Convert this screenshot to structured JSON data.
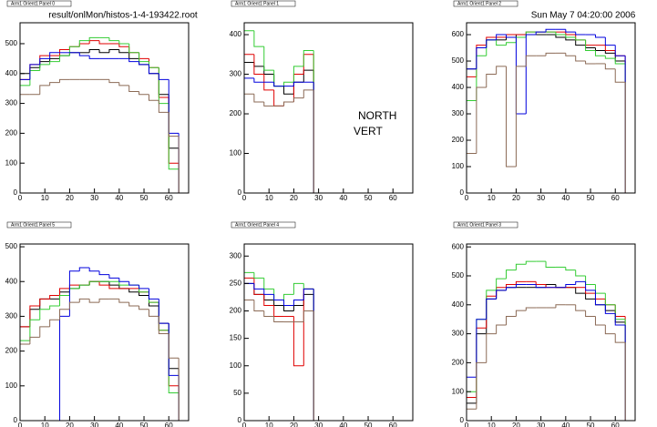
{
  "header": {
    "file": "result/onlMon/histos-1-4-193422.root",
    "date": "Sun May  7 04:20:00 2006"
  },
  "chart_data": [
    {
      "type": "histogram",
      "title": "Arm1 Orient1 Panel 0",
      "bins": [
        0,
        4,
        8,
        12,
        16,
        20,
        24,
        28,
        32,
        36,
        40,
        44,
        48,
        52,
        56,
        60,
        64,
        68
      ],
      "xlim": [
        0,
        68
      ],
      "xticks": [
        0,
        10,
        20,
        30,
        40,
        50,
        60
      ],
      "ylim": [
        0,
        570
      ],
      "yticks": [
        0,
        100,
        200,
        300,
        400,
        500
      ],
      "series": [
        {
          "color": "#000000",
          "values": [
            400,
            420,
            440,
            450,
            460,
            470,
            470,
            480,
            470,
            480,
            470,
            450,
            430,
            400,
            330,
            150,
            0
          ]
        },
        {
          "color": "#e00000",
          "values": [
            380,
            430,
            460,
            460,
            480,
            490,
            500,
            510,
            500,
            500,
            490,
            470,
            450,
            420,
            320,
            100,
            0
          ]
        },
        {
          "color": "#33cc33",
          "values": [
            360,
            410,
            430,
            440,
            460,
            490,
            510,
            520,
            520,
            510,
            500,
            470,
            440,
            420,
            300,
            80,
            0
          ]
        },
        {
          "color": "#0000dd",
          "values": [
            380,
            430,
            450,
            470,
            470,
            470,
            460,
            450,
            450,
            450,
            450,
            440,
            430,
            400,
            380,
            200,
            0
          ]
        },
        {
          "color": "#8b6a55",
          "values": [
            330,
            330,
            360,
            370,
            380,
            380,
            380,
            380,
            380,
            370,
            360,
            340,
            330,
            310,
            270,
            190,
            0
          ]
        }
      ]
    },
    {
      "type": "histogram",
      "title": "Arm1 Orient1 Panel 1",
      "annotations": [
        "NORTH",
        "VERT"
      ],
      "bins": [
        0,
        4,
        8,
        12,
        16,
        20,
        24,
        28,
        32,
        36,
        40,
        44,
        48,
        52,
        56,
        60,
        64,
        68
      ],
      "xlim": [
        0,
        68
      ],
      "xticks": [
        0,
        10,
        20,
        30,
        40,
        50,
        60
      ],
      "ylim": [
        0,
        430
      ],
      "yticks": [
        0,
        100,
        200,
        300,
        400
      ],
      "series": [
        {
          "color": "#000000",
          "values": [
            330,
            320,
            300,
            270,
            250,
            280,
            310,
            0,
            0,
            0,
            0,
            0,
            0,
            0,
            0,
            0,
            0
          ]
        },
        {
          "color": "#e00000",
          "values": [
            350,
            300,
            260,
            220,
            230,
            300,
            350,
            0,
            0,
            0,
            0,
            0,
            0,
            0,
            0,
            0,
            0
          ]
        },
        {
          "color": "#33cc33",
          "values": [
            410,
            370,
            310,
            270,
            280,
            320,
            360,
            0,
            0,
            0,
            0,
            0,
            0,
            0,
            0,
            0,
            0
          ]
        },
        {
          "color": "#0000dd",
          "values": [
            290,
            280,
            280,
            270,
            270,
            280,
            280,
            0,
            0,
            0,
            0,
            0,
            0,
            0,
            0,
            0,
            0
          ]
        },
        {
          "color": "#8b6a55",
          "values": [
            250,
            230,
            220,
            220,
            230,
            240,
            260,
            0,
            0,
            0,
            0,
            0,
            0,
            0,
            0,
            0,
            0
          ]
        }
      ]
    },
    {
      "type": "histogram",
      "title": "Arm1 Orient1 Panel 2",
      "bins": [
        0,
        4,
        8,
        12,
        16,
        20,
        24,
        28,
        32,
        36,
        40,
        44,
        48,
        52,
        56,
        60,
        64,
        68
      ],
      "xlim": [
        0,
        68
      ],
      "xticks": [
        0,
        10,
        20,
        30,
        40,
        50,
        60
      ],
      "ylim": [
        0,
        645
      ],
      "yticks": [
        0,
        100,
        200,
        300,
        400,
        500,
        600
      ],
      "series": [
        {
          "color": "#000000",
          "values": [
            470,
            550,
            580,
            580,
            590,
            600,
            600,
            600,
            600,
            590,
            580,
            560,
            550,
            540,
            530,
            500,
            0
          ]
        },
        {
          "color": "#e00000",
          "values": [
            440,
            560,
            590,
            590,
            600,
            600,
            610,
            610,
            610,
            610,
            600,
            580,
            560,
            560,
            540,
            520,
            0
          ]
        },
        {
          "color": "#33cc33",
          "values": [
            350,
            520,
            580,
            560,
            570,
            590,
            610,
            610,
            610,
            600,
            590,
            580,
            540,
            520,
            510,
            490,
            0
          ]
        },
        {
          "color": "#0000dd",
          "values": [
            470,
            550,
            580,
            600,
            590,
            300,
            600,
            610,
            620,
            620,
            610,
            600,
            600,
            590,
            560,
            520,
            0
          ]
        },
        {
          "color": "#8b6a55",
          "values": [
            150,
            400,
            450,
            480,
            100,
            480,
            520,
            520,
            530,
            530,
            520,
            500,
            490,
            490,
            470,
            420,
            0
          ]
        }
      ]
    },
    {
      "type": "histogram",
      "title": "Arm1 Orient1 Panel 5",
      "bins": [
        0,
        4,
        8,
        12,
        16,
        20,
        24,
        28,
        32,
        36,
        40,
        44,
        48,
        52,
        56,
        60,
        64,
        68
      ],
      "xlim": [
        0,
        68
      ],
      "xticks": [
        0,
        10,
        20,
        30,
        40,
        50,
        60
      ],
      "ylim": [
        0,
        508
      ],
      "yticks": [
        0,
        100,
        200,
        300,
        400,
        500
      ],
      "series": [
        {
          "color": "#000000",
          "values": [
            270,
            320,
            350,
            350,
            370,
            380,
            390,
            400,
            400,
            390,
            380,
            370,
            360,
            330,
            280,
            150,
            0
          ]
        },
        {
          "color": "#e00000",
          "values": [
            270,
            330,
            350,
            360,
            380,
            390,
            390,
            400,
            390,
            380,
            380,
            380,
            370,
            340,
            260,
            100,
            0
          ]
        },
        {
          "color": "#33cc33",
          "values": [
            230,
            290,
            320,
            330,
            360,
            380,
            390,
            400,
            400,
            400,
            390,
            390,
            370,
            340,
            260,
            80,
            0
          ]
        },
        {
          "color": "#0000dd",
          "values": [
            0,
            0,
            0,
            0,
            300,
            430,
            440,
            430,
            420,
            410,
            400,
            390,
            380,
            350,
            280,
            130,
            0
          ]
        },
        {
          "color": "#8b6a55",
          "values": [
            220,
            240,
            270,
            290,
            320,
            340,
            350,
            340,
            350,
            350,
            340,
            330,
            320,
            300,
            250,
            180,
            0
          ]
        }
      ]
    },
    {
      "type": "histogram",
      "title": "Arm1 Orient1 Panel 4",
      "bins": [
        0,
        4,
        8,
        12,
        16,
        20,
        24,
        28,
        32,
        36,
        40,
        44,
        48,
        52,
        56,
        60,
        64,
        68
      ],
      "xlim": [
        0,
        68
      ],
      "xticks": [
        0,
        10,
        20,
        30,
        40,
        50,
        60
      ],
      "ylim": [
        0,
        322
      ],
      "yticks": [
        0,
        50,
        100,
        150,
        200,
        250,
        300
      ],
      "series": [
        {
          "color": "#000000",
          "values": [
            250,
            230,
            220,
            210,
            200,
            210,
            230,
            0,
            0,
            0,
            0,
            0,
            0,
            0,
            0,
            0,
            0
          ]
        },
        {
          "color": "#e00000",
          "values": [
            260,
            230,
            210,
            190,
            190,
            100,
            240,
            0,
            0,
            0,
            0,
            0,
            0,
            0,
            0,
            0,
            0
          ]
        },
        {
          "color": "#33cc33",
          "values": [
            270,
            260,
            240,
            220,
            230,
            250,
            240,
            0,
            0,
            0,
            0,
            0,
            0,
            0,
            0,
            0,
            0
          ]
        },
        {
          "color": "#0000dd",
          "values": [
            250,
            240,
            230,
            220,
            210,
            220,
            240,
            0,
            0,
            0,
            0,
            0,
            0,
            0,
            0,
            0,
            0
          ]
        },
        {
          "color": "#8b6a55",
          "values": [
            220,
            200,
            190,
            180,
            180,
            180,
            200,
            0,
            0,
            0,
            0,
            0,
            0,
            0,
            0,
            0,
            0
          ]
        }
      ]
    },
    {
      "type": "histogram",
      "title": "Arm1 Orient1 Panel 3",
      "bins": [
        0,
        4,
        8,
        12,
        16,
        20,
        24,
        28,
        32,
        36,
        40,
        44,
        48,
        52,
        56,
        60,
        64,
        68
      ],
      "xlim": [
        0,
        68
      ],
      "xticks": [
        0,
        10,
        20,
        30,
        40,
        50,
        60
      ],
      "ylim": [
        0,
        610
      ],
      "yticks": [
        0,
        100,
        200,
        300,
        400,
        500,
        600
      ],
      "series": [
        {
          "color": "#000000",
          "values": [
            60,
            300,
            420,
            450,
            460,
            460,
            460,
            460,
            470,
            460,
            460,
            440,
            420,
            400,
            380,
            340,
            0
          ]
        },
        {
          "color": "#e00000",
          "values": [
            80,
            320,
            430,
            460,
            470,
            480,
            480,
            470,
            460,
            460,
            460,
            460,
            440,
            420,
            400,
            360,
            0
          ]
        },
        {
          "color": "#33cc33",
          "values": [
            100,
            350,
            450,
            490,
            520,
            540,
            550,
            550,
            530,
            530,
            520,
            500,
            470,
            440,
            400,
            350,
            0
          ]
        },
        {
          "color": "#0000dd",
          "values": [
            150,
            350,
            420,
            450,
            460,
            470,
            470,
            460,
            460,
            460,
            470,
            480,
            450,
            400,
            370,
            330,
            0
          ]
        },
        {
          "color": "#8b6a55",
          "values": [
            40,
            200,
            300,
            330,
            360,
            380,
            390,
            390,
            390,
            400,
            400,
            380,
            360,
            330,
            300,
            270,
            0
          ]
        }
      ]
    }
  ]
}
